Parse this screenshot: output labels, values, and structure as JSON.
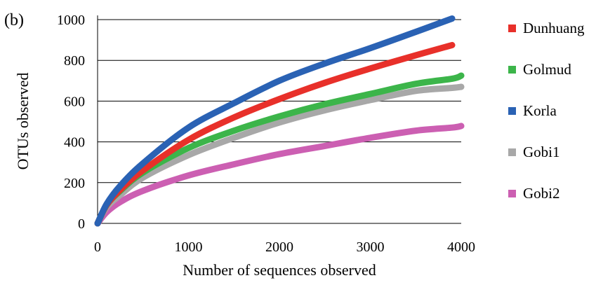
{
  "panel_label": "(b)",
  "chart_data": {
    "type": "line",
    "xlabel": "Number of sequences observed",
    "ylabel": "OTUs observed",
    "xlim": [
      0,
      4000
    ],
    "ylim": [
      0,
      1000
    ],
    "xticks": [
      0,
      1000,
      2000,
      3000,
      4000
    ],
    "yticks": [
      0,
      200,
      400,
      600,
      800,
      1000
    ],
    "grid": "horizontal",
    "legend_position": "right",
    "x": [
      0,
      100,
      250,
      500,
      1000,
      1500,
      2000,
      2500,
      3000,
      3500,
      3900,
      4000
    ],
    "series": [
      {
        "name": "Dunhuang",
        "color": "#e8302a",
        "values": [
          0,
          90,
          165,
          260,
          410,
          520,
          610,
          690,
          760,
          825,
          875,
          null
        ]
      },
      {
        "name": "Golmud",
        "color": "#3cb54a",
        "values": [
          0,
          90,
          160,
          250,
          370,
          455,
          525,
          585,
          635,
          685,
          710,
          725
        ]
      },
      {
        "name": "Korla",
        "color": "#2a62b4",
        "values": [
          0,
          95,
          185,
          295,
          470,
          590,
          700,
          785,
          860,
          940,
          1005,
          null
        ]
      },
      {
        "name": "Gobi1",
        "color": "#a8a8a8",
        "values": [
          0,
          80,
          140,
          225,
          335,
          420,
          495,
          555,
          605,
          650,
          665,
          670
        ]
      },
      {
        "name": "Gobi2",
        "color": "#cc5fb2",
        "values": [
          0,
          55,
          105,
          160,
          235,
          290,
          340,
          380,
          420,
          455,
          470,
          478
        ]
      }
    ]
  }
}
